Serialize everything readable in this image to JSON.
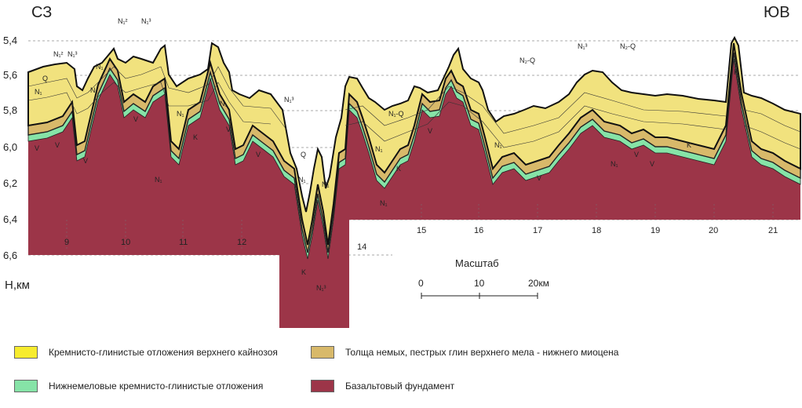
{
  "corner_left": "СЗ",
  "corner_right": "ЮВ",
  "depth_axis": {
    "title": "Н,км",
    "ticks": [
      "5,4",
      "5,6",
      "5,8",
      "6,0",
      "6,2",
      "6,4",
      "6,6"
    ]
  },
  "stations": [
    "9",
    "10",
    "11",
    "12",
    "14",
    "15",
    "16",
    "17",
    "18",
    "19",
    "20",
    "21"
  ],
  "scale_bar": {
    "title": "Масштаб",
    "ticks": [
      "0",
      "10",
      "20км"
    ]
  },
  "strata_labels": [
    "N₁²",
    "N₁³",
    "N₁²",
    "N₁³",
    "N₁",
    "Q",
    "N₁",
    "N₁",
    "N₁",
    "N₁",
    "N₁³",
    "N₁",
    "Q",
    "N₁",
    "N₁",
    "N₁-Q",
    "N₁",
    "N₂-Q",
    "N₁",
    "N₁³",
    "N₂-Q",
    "N₁",
    "N₁³",
    "N₁",
    "K",
    "K",
    "K",
    "K",
    "K",
    "V",
    "V",
    "V",
    "V",
    "V",
    "V",
    "V",
    "V",
    "V",
    "V"
  ],
  "legend": [
    {
      "label": "Кремнисто-глинистые отложения верхнего кайнозоя",
      "color": "#f7ec2e"
    },
    {
      "label": "Толща немых, пестрых глин верхнего мела - нижнего миоцена",
      "color": "#d8b96a"
    },
    {
      "label": "Нижнемеловые кремнисто-глинистые отложения",
      "color": "#86e3a7"
    },
    {
      "label": "Базальтовый фундамент",
      "color": "#9c3548"
    }
  ],
  "colors": {
    "cenozoic": "#f1e27e",
    "cenozoic_bright": "#f7ec2e",
    "clay": "#d8b96a",
    "lower_cretaceous": "#86e3a7",
    "basement": "#9c3548"
  }
}
